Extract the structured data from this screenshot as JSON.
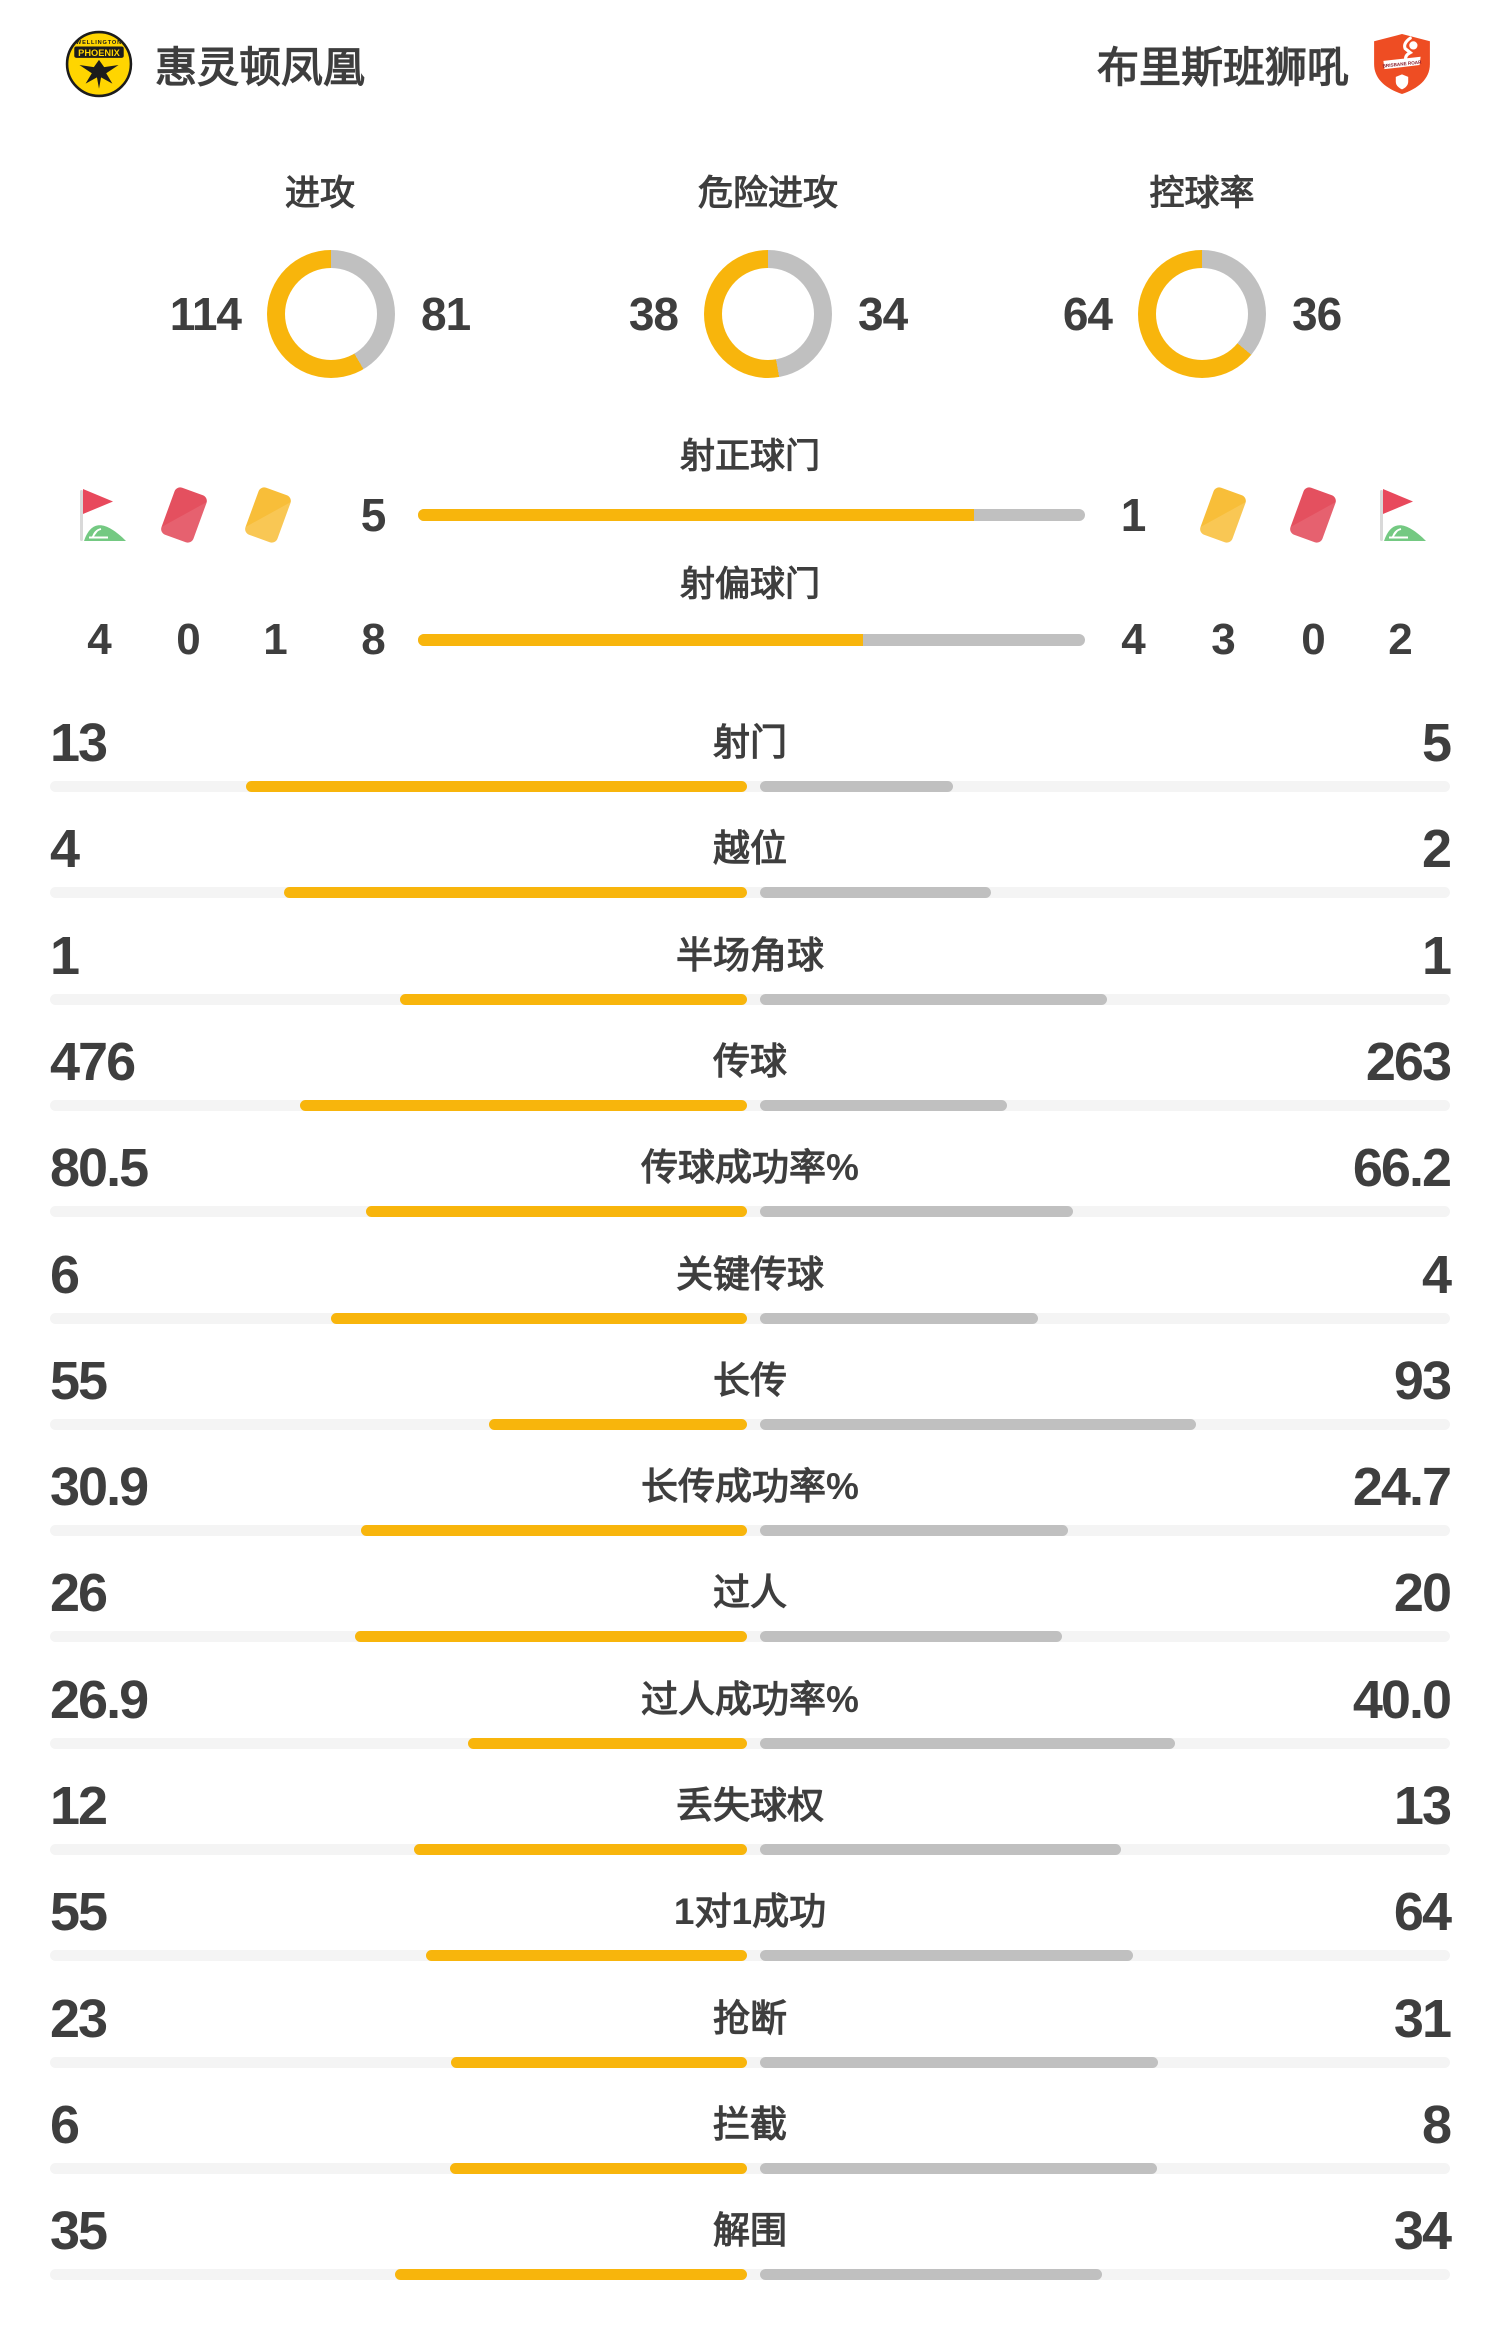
{
  "header": {
    "home_team": "惠灵顿凤凰",
    "away_team": "布里斯班狮吼"
  },
  "colors": {
    "home_bar": "#F8B50C",
    "away_bar": "#C0C0C0",
    "track": "#F4F4F4",
    "text": "#3E3E3E",
    "red_card": "#E4505F",
    "yellow_card": "#F8BE39",
    "flag_red": "#E8495C",
    "flag_pole": "#D9D9D9",
    "mound_green": "#74C982",
    "phoenix_yellow": "#FFD500",
    "roar_orange": "#EE4D23"
  },
  "chart_data": {
    "type": "match-stats",
    "donuts": [
      {
        "type": "donut",
        "title": "进攻",
        "home": 114,
        "away": 81
      },
      {
        "type": "donut",
        "title": "危险进攻",
        "home": 38,
        "away": 34
      },
      {
        "type": "donut",
        "title": "控球率",
        "home": 64,
        "away": 36
      }
    ],
    "shot_bars": [
      {
        "type": "bar",
        "label": "射正球门",
        "home": 5,
        "away": 1
      },
      {
        "type": "bar",
        "label": "射偏球门",
        "home": 8,
        "away": 4
      }
    ],
    "discipline": {
      "home": {
        "corners": "4",
        "red_cards": "0",
        "yellow_cards": "1"
      },
      "away": {
        "corners": "2",
        "red_cards": "0",
        "yellow_cards": "3"
      }
    },
    "stats": [
      {
        "label": "射门",
        "home": "13",
        "away": "5"
      },
      {
        "label": "越位",
        "home": "4",
        "away": "2"
      },
      {
        "label": "半场角球",
        "home": "1",
        "away": "1"
      },
      {
        "label": "传球",
        "home": "476",
        "away": "263"
      },
      {
        "label": "传球成功率%",
        "home": "80.5",
        "away": "66.2"
      },
      {
        "label": "关键传球",
        "home": "6",
        "away": "4"
      },
      {
        "label": "长传",
        "home": "55",
        "away": "93"
      },
      {
        "label": "长传成功率%",
        "home": "30.9",
        "away": "24.7"
      },
      {
        "label": "过人",
        "home": "26",
        "away": "20"
      },
      {
        "label": "过人成功率%",
        "home": "26.9",
        "away": "40.0"
      },
      {
        "label": "丢失球权",
        "home": "12",
        "away": "13"
      },
      {
        "label": "1对1成功",
        "home": "55",
        "away": "64"
      },
      {
        "label": "抢断",
        "home": "23",
        "away": "31"
      },
      {
        "label": "拦截",
        "home": "6",
        "away": "8"
      },
      {
        "label": "解围",
        "home": "35",
        "away": "34"
      }
    ]
  }
}
